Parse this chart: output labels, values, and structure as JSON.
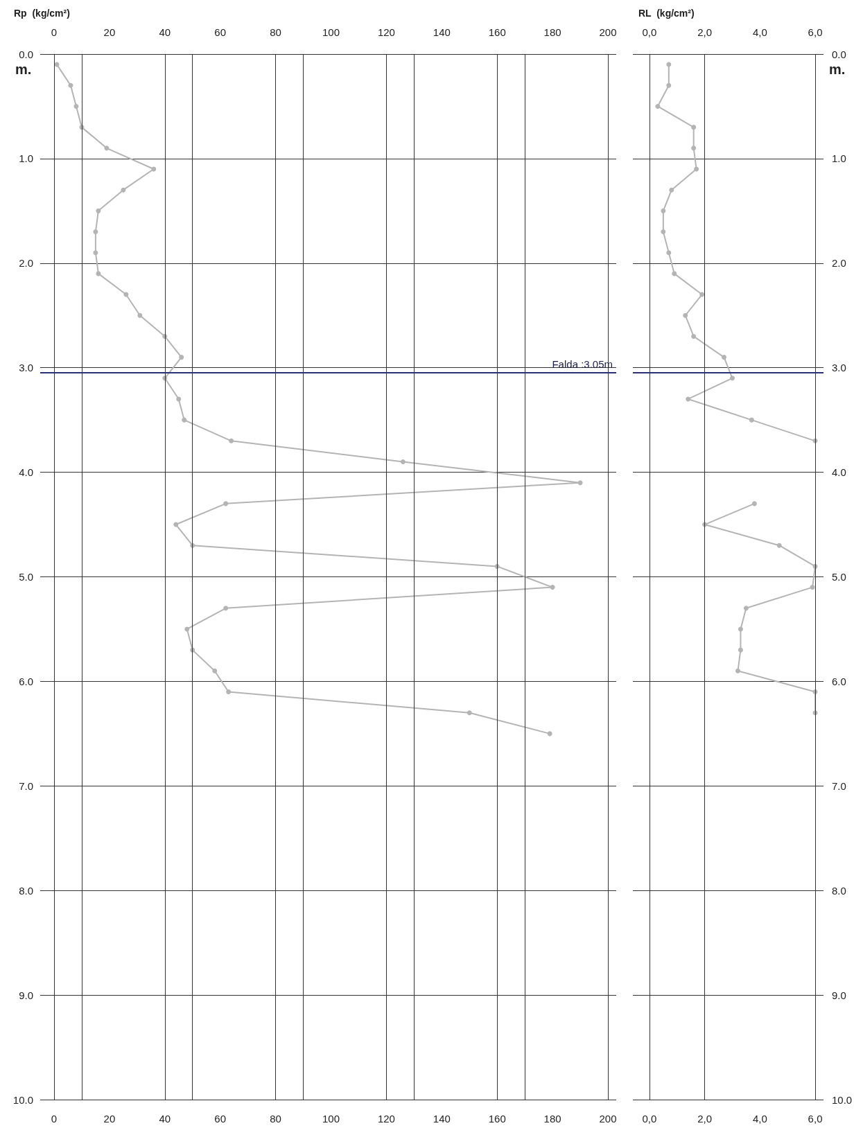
{
  "chart_data": [
    {
      "type": "line",
      "x2label": "Rp  (kg/cm²)",
      "ylabel": "m.",
      "xlim": [
        -5,
        203
      ],
      "xticks": [
        0,
        20,
        40,
        60,
        80,
        100,
        120,
        140,
        160,
        180,
        200
      ],
      "x2lim": [
        -5,
        203
      ],
      "x2ticks": [
        0,
        20,
        40,
        60,
        80,
        100,
        120,
        140,
        160,
        180,
        200
      ],
      "ylim": [
        10,
        0
      ],
      "yticks": [
        {
          "value": 0,
          "label": "0.0"
        },
        {
          "value": 1,
          "label": "1.0"
        },
        {
          "value": 2,
          "label": "2.0"
        },
        {
          "value": 3,
          "label": "3.0"
        },
        {
          "value": 4,
          "label": "4.0"
        },
        {
          "value": 5,
          "label": "5.0"
        },
        {
          "value": 6,
          "label": "6.0"
        },
        {
          "value": 7,
          "label": "7.0"
        },
        {
          "value": 8,
          "label": "8.0"
        },
        {
          "value": 9,
          "label": "9.0"
        },
        {
          "value": 10,
          "label": "10.0"
        }
      ],
      "grid": "y",
      "marker": "circle",
      "line_style": "solid",
      "series": [
        {
          "color": "#b4b4b4",
          "x": [
            1,
            6,
            8,
            10,
            19,
            36,
            25,
            16,
            15,
            15,
            16,
            26,
            31,
            40,
            46,
            40,
            45,
            47,
            64,
            126,
            190,
            62,
            44,
            50,
            160,
            180,
            62,
            48,
            50,
            58,
            63,
            150,
            179
          ],
          "values": [
            0.1,
            0.3,
            0.5,
            0.7,
            0.9,
            1.1,
            1.3,
            1.5,
            1.7,
            1.9,
            2.1,
            2.3,
            2.5,
            2.7,
            2.9,
            3.1,
            3.3,
            3.5,
            3.7,
            3.9,
            4.1,
            4.3,
            4.5,
            4.7,
            4.9,
            5.1,
            5.3,
            5.5,
            5.7,
            5.9,
            6.1,
            6.3,
            6.5
          ]
        }
      ],
      "ref_lines": [
        {
          "axis": "x",
          "value": 0,
          "color": "#333333"
        },
        {
          "axis": "x",
          "value": 10,
          "color": "#333333"
        },
        {
          "axis": "x",
          "value": 40,
          "color": "#333333"
        },
        {
          "axis": "x",
          "value": 50,
          "color": "#333333"
        },
        {
          "axis": "x",
          "value": 80,
          "color": "#333333"
        },
        {
          "axis": "x",
          "value": 90,
          "color": "#333333"
        },
        {
          "axis": "x",
          "value": 120,
          "color": "#333333"
        },
        {
          "axis": "x",
          "value": 130,
          "color": "#333333"
        },
        {
          "axis": "x",
          "value": 160,
          "color": "#333333"
        },
        {
          "axis": "x",
          "value": 170,
          "color": "#333333"
        },
        {
          "axis": "x",
          "value": 200,
          "color": "#333333"
        },
        {
          "axis": "y",
          "value": 3.05,
          "label": "Falda :3.05m",
          "color": "#2b2f7a"
        }
      ]
    },
    {
      "type": "line",
      "x2label": "RL  (kg/cm²)",
      "ylabel": "m.",
      "xlim": [
        -0.6,
        6.3
      ],
      "xticks": [
        {
          "value": 0,
          "label": "0,0"
        },
        {
          "value": 2,
          "label": "2,0"
        },
        {
          "value": 4,
          "label": "4,0"
        },
        {
          "value": 6,
          "label": "6,0"
        }
      ],
      "x2lim": [
        -0.6,
        6.3
      ],
      "x2ticks": [
        {
          "value": 0,
          "label": "0,0"
        },
        {
          "value": 2,
          "label": "2,0"
        },
        {
          "value": 4,
          "label": "4,0"
        },
        {
          "value": 6,
          "label": "6,0"
        }
      ],
      "ylim": [
        10,
        0
      ],
      "yticks": [
        {
          "value": 0,
          "label": "0.0"
        },
        {
          "value": 1,
          "label": "1.0"
        },
        {
          "value": 2,
          "label": "2.0"
        },
        {
          "value": 3,
          "label": "3.0"
        },
        {
          "value": 4,
          "label": "4.0"
        },
        {
          "value": 5,
          "label": "5.0"
        },
        {
          "value": 6,
          "label": "6.0"
        },
        {
          "value": 7,
          "label": "7.0"
        },
        {
          "value": 8,
          "label": "8.0"
        },
        {
          "value": 9,
          "label": "9.0"
        },
        {
          "value": 10,
          "label": "10.0"
        }
      ],
      "grid": "y",
      "marker": "circle",
      "line_style": "solid",
      "series": [
        {
          "color": "#b4b4b4",
          "x": [
            0.7,
            0.7,
            0.3,
            1.6,
            1.6,
            1.7,
            0.8,
            0.5,
            0.5,
            0.7,
            0.9,
            1.9,
            1.3,
            1.6,
            2.7,
            3.0,
            1.4,
            3.7,
            6.0,
            null,
            null,
            3.8,
            2.0,
            4.7,
            6.0,
            5.9,
            3.5,
            3.3,
            3.3,
            3.2,
            6.0,
            6.0,
            null
          ],
          "values": [
            0.1,
            0.3,
            0.5,
            0.7,
            0.9,
            1.1,
            1.3,
            1.5,
            1.7,
            1.9,
            2.1,
            2.3,
            2.5,
            2.7,
            2.9,
            3.1,
            3.3,
            3.5,
            3.7,
            null,
            null,
            4.3,
            4.5,
            4.7,
            4.9,
            5.1,
            5.3,
            5.5,
            5.7,
            5.9,
            6.1,
            6.3,
            null
          ]
        }
      ],
      "ref_lines": [
        {
          "axis": "x",
          "value": 0,
          "color": "#333333"
        },
        {
          "axis": "x",
          "value": 2,
          "color": "#333333"
        },
        {
          "axis": "x",
          "value": 6,
          "color": "#333333"
        },
        {
          "axis": "y",
          "value": 3.05,
          "color": "#2b2f7a"
        }
      ]
    }
  ]
}
